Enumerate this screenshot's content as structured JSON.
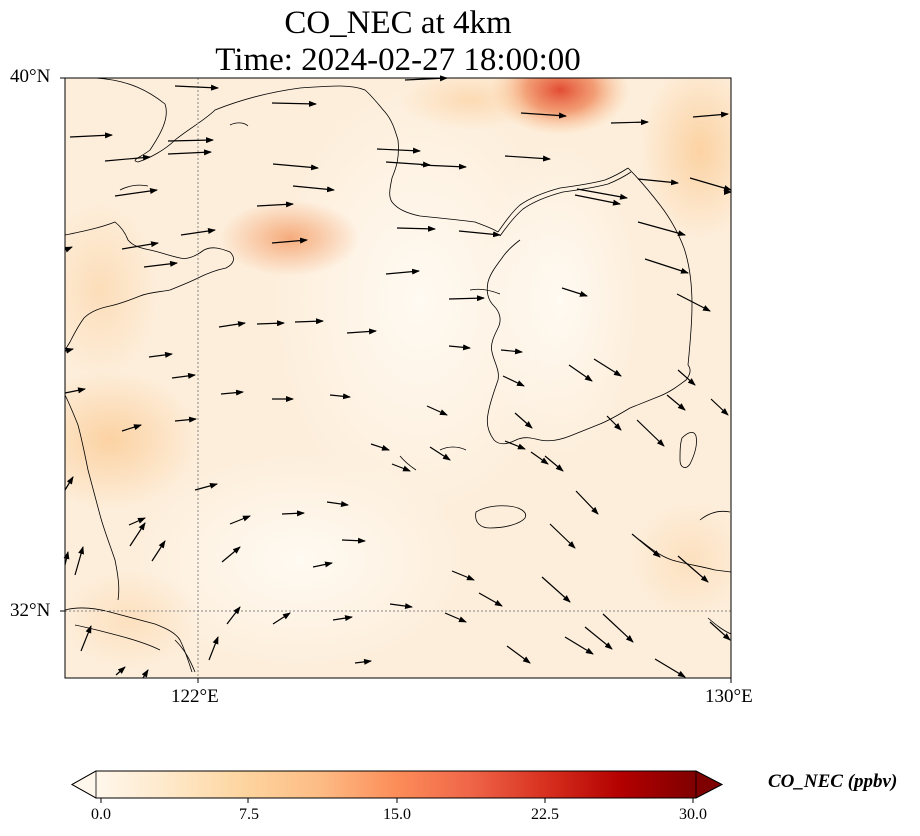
{
  "title": {
    "line1": "CO_NEC at 4km",
    "line2": "Time: 2024-02-27 18:00:00"
  },
  "map": {
    "lon_range": [
      120,
      130
    ],
    "lat_range": [
      31,
      40
    ],
    "gridlines": {
      "lon": [
        122
      ],
      "lat": [
        32
      ]
    },
    "lat_labels": [
      "40°N",
      "32°N"
    ],
    "lon_labels": [
      "122°E",
      "130°E"
    ]
  },
  "colorbar": {
    "label": "CO_NEC (ppbv)",
    "min": 0,
    "max": 30,
    "ticks": [
      "0.0",
      "7.5",
      "15.0",
      "22.5",
      "30.0"
    ],
    "colormap": "OrRd",
    "extend": "both",
    "colors": [
      "#fff7ec",
      "#fee8c8",
      "#fdd49e",
      "#fdbb84",
      "#fc8d59",
      "#ef6548",
      "#d7301f",
      "#b30000",
      "#7f0000"
    ]
  },
  "field_colors": {
    "background": "#fef1e1",
    "light": "#fff6ea",
    "moderate": "#fdd9b0",
    "high": "#f4a878",
    "peak": "#e4583a"
  }
}
